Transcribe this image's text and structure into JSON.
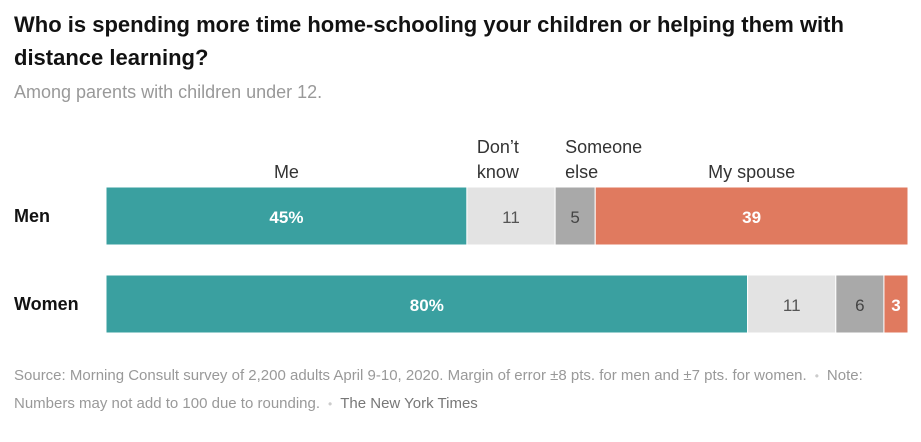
{
  "title": "Who is spending more time home-schooling your children or helping them with distance learning?",
  "subtitle": "Among parents with children under 12.",
  "chart_data": {
    "type": "bar",
    "orientation": "horizontal",
    "stacked": true,
    "title": "Who is spending more time home-schooling your children or helping them with distance learning?",
    "subtitle": "Among parents with children under 12.",
    "categories": [
      "Men",
      "Women"
    ],
    "series": [
      {
        "name": "Me",
        "label_lines": [
          "Me"
        ],
        "color": "#3aa0a0",
        "text_color": "#ffffff",
        "values": [
          45,
          80
        ],
        "labels": [
          "45%",
          "80%"
        ]
      },
      {
        "name": "Don’t know",
        "label_lines": [
          "Don’t",
          "know"
        ],
        "color": "#e3e3e3",
        "text_color": "#555555",
        "values": [
          11,
          11
        ],
        "labels": [
          "11",
          "11"
        ]
      },
      {
        "name": "Someone else",
        "label_lines": [
          "Someone",
          "else"
        ],
        "color": "#a9a9a9",
        "text_color": "#444444",
        "values": [
          5,
          6
        ],
        "labels": [
          "5",
          "6"
        ]
      },
      {
        "name": "My spouse",
        "label_lines": [
          "My spouse"
        ],
        "color": "#e07a5f",
        "text_color": "#ffffff",
        "values": [
          39,
          3
        ],
        "labels": [
          "39",
          "3"
        ]
      }
    ],
    "legend": "top",
    "grid": false
  },
  "footer": {
    "source": "Source: Morning Consult survey of 2,200 adults April 9-10, 2020. Margin of error ±8 pts. for men and ±7 pts. for women.",
    "note": "Note: Numbers may not add to 100 due to rounding.",
    "credit": "The New York Times"
  }
}
